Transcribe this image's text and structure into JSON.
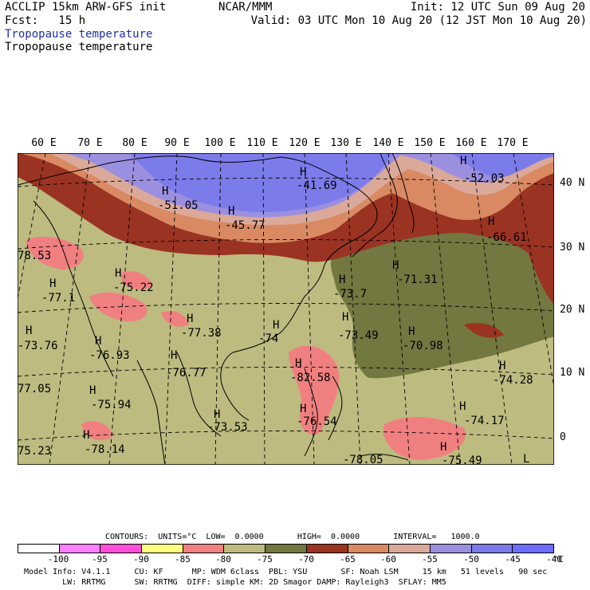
{
  "header": {
    "line1_left": "ACCLIP 15km ARW-GFS init",
    "line2_left": "Fcst:   15 h",
    "line1_center": "NCAR/MMM",
    "line1_right": "Init: 12 UTC Sun 09 Aug 20",
    "line2_right": "Valid: 03 UTC Mon 10 Aug 20 (12 JST Mon 10 Aug 20)",
    "field_title_1": "Tropopause temperature",
    "field_title_2": "Tropopause temperature"
  },
  "map": {
    "lon_labels": [
      "60 E",
      "70 E",
      "80 E",
      "90 E",
      "100 E",
      "110 E",
      "120 E",
      "130 E",
      "140 E",
      "150 E",
      "160 E",
      "170 E"
    ],
    "lat_labels": [
      "40 N",
      "30 N",
      "20 N",
      "10 N",
      "0"
    ],
    "colors": {
      "cold_blue": "#7b7bea",
      "purple": "#9b8fe0",
      "pink_light": "#dba99a",
      "orange": "#d98a63",
      "brick": "#9b3322",
      "olive_dark": "#737740",
      "khaki": "#bdbb80",
      "salmon": "#f08080",
      "coast": "#000000"
    },
    "highs": [
      {
        "label": "H",
        "value": "-51.05"
      },
      {
        "label": "H",
        "value": "-45.77"
      },
      {
        "label": "H",
        "value": "-41.69"
      },
      {
        "label": "H",
        "value": "-52.03"
      },
      {
        "label": "H",
        "value": "-66.61"
      },
      {
        "label": "",
        "value": "78.53"
      },
      {
        "label": "H",
        "value": "-77.1"
      },
      {
        "label": "H",
        "value": "-75.22"
      },
      {
        "label": "H",
        "value": "-71.31"
      },
      {
        "label": "H",
        "value": "-73.7"
      },
      {
        "label": "H",
        "value": "-73.76"
      },
      {
        "label": "H",
        "value": "-76.93"
      },
      {
        "label": "H",
        "value": "-77.38"
      },
      {
        "label": "H",
        "value": "-74"
      },
      {
        "label": "H",
        "value": "-73.49"
      },
      {
        "label": "H",
        "value": "-70.98"
      },
      {
        "label": "H",
        "value": "-76.77"
      },
      {
        "label": "H",
        "value": "-82.58"
      },
      {
        "label": "H",
        "value": "-74.28"
      },
      {
        "label": "",
        "value": "77.05"
      },
      {
        "label": "H",
        "value": "-75.94"
      },
      {
        "label": "H",
        "value": "-73.53"
      },
      {
        "label": "H",
        "value": "-76.54"
      },
      {
        "label": "H",
        "value": "-74.17"
      },
      {
        "label": "",
        "value": "75.23"
      },
      {
        "label": "H",
        "value": "-78.14"
      },
      {
        "label": "",
        "value": "-78.05"
      },
      {
        "label": "H",
        "value": "-75.49"
      },
      {
        "label": "L",
        "value": ""
      }
    ]
  },
  "footer": {
    "contours": "CONTOURS:  UNITS=°C  LOW=  0.0000       HIGH=  0.0000       INTERVAL=   1000.0",
    "colorbar_colors": [
      "#ffffff",
      "#ff80ff",
      "#ff4fd8",
      "#ffff80",
      "#f08080",
      "#bdbb80",
      "#737740",
      "#9b3322",
      "#d98a63",
      "#dba99a",
      "#9b8fe0",
      "#7b7bea",
      "#6d6dff"
    ],
    "colorbar_ticks": [
      "-100",
      "-95",
      "-90",
      "-85",
      "-80",
      "-75",
      "-70",
      "-65",
      "-60",
      "-55",
      "-50",
      "-45",
      "-40",
      "°C"
    ],
    "model_info_1": "Model Info: V4.1.1     CU: KF      MP: WDM 6class  PBL: YSU       SF: Noah LSM     15 km   51 levels   90 sec",
    "model_info_2": "        LW: RRTMG      SW: RRTMG  DIFF: simple KM: 2D Smagor DAMP: Rayleigh3  SFLAY: MM5"
  }
}
